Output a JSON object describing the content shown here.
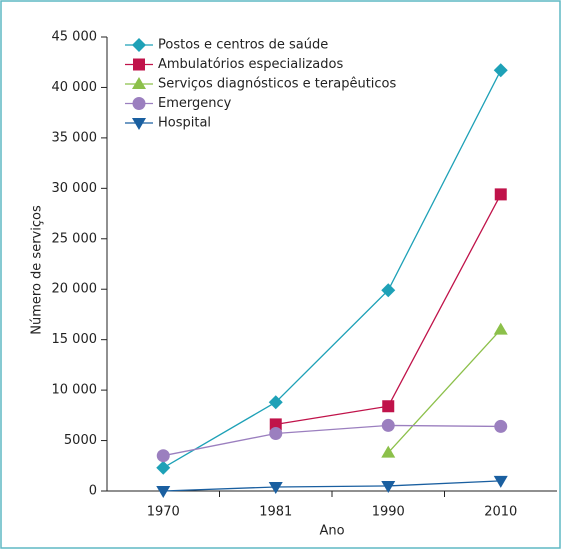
{
  "chart_data": {
    "type": "line",
    "x_label": "Ano",
    "y_label": "Número de serviços",
    "categories": [
      "1970",
      "1981",
      "1990",
      "2010"
    ],
    "series": [
      {
        "name": "Postos e centros de saúde",
        "color": "#1ea1b7",
        "marker": "diamond",
        "values": [
          2300,
          8800,
          19900,
          41700
        ]
      },
      {
        "name": "Ambulatórios especializados",
        "color": "#c0134a",
        "marker": "square",
        "values": [
          null,
          6600,
          8400,
          29400
        ]
      },
      {
        "name": "Serviços diagnósticos e terapêuticos",
        "color": "#8cc04a",
        "marker": "triangle-up",
        "values": [
          null,
          null,
          3800,
          16000
        ]
      },
      {
        "name": "Emergency",
        "color": "#9b7fbf",
        "marker": "circle",
        "values": [
          3500,
          5700,
          6500,
          6400
        ]
      },
      {
        "name": "Hospital",
        "color": "#1a5fa0",
        "marker": "triangle-down",
        "values": [
          0,
          400,
          500,
          1000
        ]
      }
    ],
    "ylim": [
      0,
      45000
    ],
    "yticks": [
      0,
      5000,
      {
        "value": 10000,
        "label": "10 000"
      },
      {
        "value": 15000,
        "label": "15 000"
      },
      {
        "value": 20000,
        "label": "20 000"
      },
      {
        "value": 25000,
        "label": "25 000"
      },
      {
        "value": 30000,
        "label": "30 000"
      },
      {
        "value": 35000,
        "label": "35 000"
      },
      {
        "value": 40000,
        "label": "40 000"
      },
      {
        "value": 45000,
        "label": "45 000"
      }
    ],
    "grid": false
  }
}
